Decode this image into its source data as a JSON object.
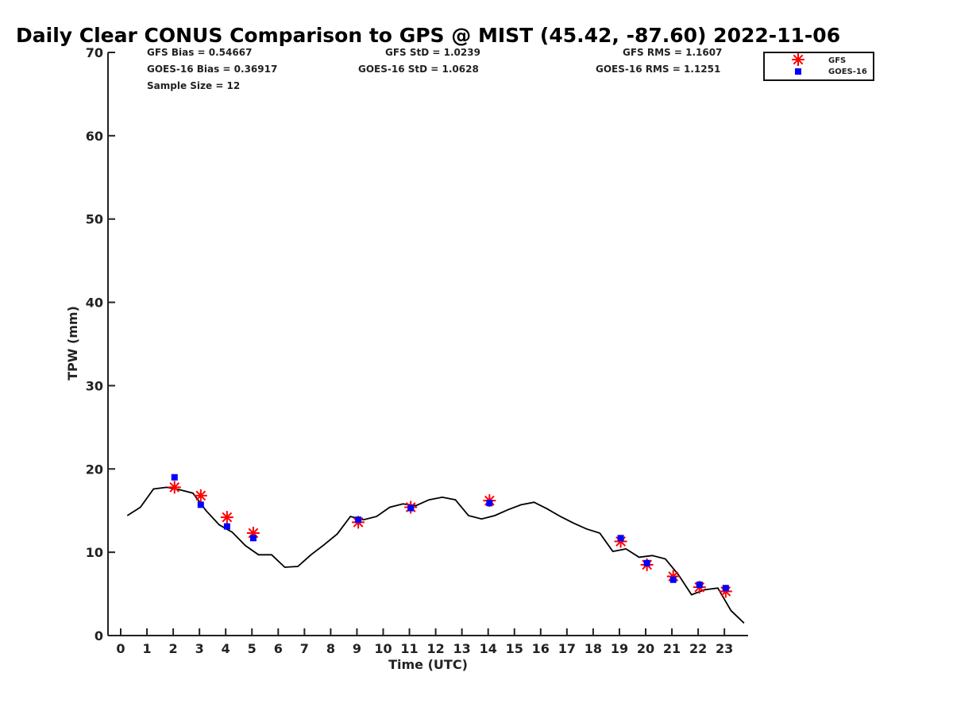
{
  "title": "Daily Clear CONUS Comparison to GPS @ MIST (45.42, -87.60) 2022-11-06",
  "stats": {
    "gfs_bias": "GFS Bias = 0.54667",
    "goes_bias": "GOES-16 Bias = 0.36917",
    "sample_size": "Sample Size = 12",
    "gfs_std": "GFS StD = 1.0239",
    "goes_std": "GOES-16 StD = 1.0628",
    "gfs_rms": "GFS RMS = 1.1607",
    "goes_rms": "GOES-16 RMS = 1.1251"
  },
  "colors": {
    "gfs": "#ff0000",
    "goes": "#0000ff",
    "gps_line": "#000000",
    "axis": "#222222"
  },
  "chart_data": {
    "type": "scatter",
    "xlabel": "Time (UTC)",
    "ylabel": "TPW (mm)",
    "xlim": [
      -0.5,
      23.75
    ],
    "ylim": [
      0,
      70
    ],
    "xticks": [
      0,
      1,
      2,
      3,
      4,
      5,
      6,
      7,
      8,
      9,
      10,
      11,
      12,
      13,
      14,
      15,
      16,
      17,
      18,
      19,
      20,
      21,
      22,
      23
    ],
    "yticks": [
      0,
      10,
      20,
      30,
      40,
      50,
      60,
      70
    ],
    "grid": false,
    "legend_position": "top-right",
    "series": [
      {
        "name": "GFS",
        "marker": "asterisk",
        "x": [
          2.05,
          3.05,
          4.05,
          5.05,
          9.05,
          11.05,
          14.05,
          19.05,
          20.05,
          21.05,
          22.05,
          23.05
        ],
        "y": [
          17.8,
          16.8,
          14.2,
          12.3,
          13.6,
          15.4,
          16.2,
          11.3,
          8.5,
          7.1,
          5.8,
          5.3
        ]
      },
      {
        "name": "GOES-16",
        "marker": "square",
        "x": [
          2.05,
          3.05,
          4.05,
          5.05,
          9.05,
          11.05,
          14.05,
          19.05,
          20.05,
          21.05,
          22.05,
          23.05
        ],
        "y": [
          19.0,
          15.7,
          13.1,
          11.7,
          13.9,
          15.3,
          15.9,
          11.7,
          8.7,
          6.7,
          6.1,
          5.7
        ]
      },
      {
        "marker": "line",
        "x": [
          0.25,
          0.75,
          1.25,
          1.75,
          2.25,
          2.75,
          3.25,
          3.75,
          4.25,
          4.75,
          5.25,
          5.75,
          6.25,
          6.75,
          7.25,
          7.75,
          8.25,
          8.75,
          9.25,
          9.75,
          10.25,
          10.75,
          11.25,
          11.75,
          12.25,
          12.75,
          13.25,
          13.75,
          14.25,
          14.75,
          15.25,
          15.75,
          16.25,
          16.75,
          17.25,
          17.75,
          18.25,
          18.75,
          19.25,
          19.75,
          20.25,
          20.75,
          21.25,
          21.75,
          22.25,
          22.75,
          23.25,
          23.75
        ],
        "y": [
          14.4,
          15.4,
          17.6,
          17.8,
          17.5,
          17.1,
          15.0,
          13.3,
          12.4,
          10.8,
          9.7,
          9.7,
          8.2,
          8.3,
          9.7,
          10.9,
          12.2,
          14.3,
          13.9,
          14.3,
          15.4,
          15.8,
          15.6,
          16.3,
          16.6,
          16.3,
          14.4,
          14.0,
          14.4,
          15.1,
          15.7,
          16.0,
          15.2,
          14.3,
          13.5,
          12.8,
          12.3,
          10.1,
          10.4,
          9.4,
          9.6,
          9.2,
          7.3,
          4.9,
          5.5,
          5.7,
          3.0,
          1.5
        ]
      }
    ]
  }
}
